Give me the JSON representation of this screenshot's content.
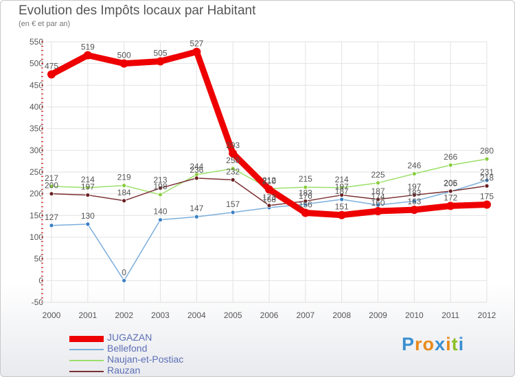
{
  "header": {
    "title": "Evolution des Impôts locaux par Habitant",
    "subtitle": "(en € et par an)"
  },
  "brand": {
    "letters": [
      "P",
      "r",
      "o",
      "x",
      "i",
      "t",
      "i"
    ],
    "colors": [
      "#3a8fd0",
      "#e8891c",
      "#e8891c",
      "#3a8fd0",
      "#e8891c",
      "#8cbf26",
      "#3a8fd0"
    ]
  },
  "chart_data": {
    "type": "line",
    "title": "Evolution des Impôts locaux par Habitant",
    "subtitle": "(en € et par an)",
    "xlabel": "",
    "ylabel": "",
    "categories": [
      "2000",
      "2001",
      "2002",
      "2003",
      "2004",
      "2005",
      "2006",
      "2007",
      "2008",
      "2009",
      "2010",
      "2011",
      "2012"
    ],
    "ylim": [
      -50,
      550
    ],
    "yticks": [
      -50,
      0,
      50,
      100,
      150,
      200,
      250,
      300,
      350,
      400,
      450,
      500,
      550
    ],
    "grid": true,
    "legend_position": "bottom-left",
    "series": [
      {
        "name": "JUGAZAN",
        "color": "#ee0000",
        "marker_color": "#ee0000",
        "values": [
          475,
          519,
          500,
          505,
          527,
          293,
          210,
          156,
          151,
          160,
          163,
          172,
          175
        ],
        "labels": [
          "475",
          "519",
          "500",
          "505",
          "527",
          "293",
          "210",
          "156",
          "151",
          "160",
          "163",
          "172",
          "175"
        ]
      },
      {
        "name": "Bellefond",
        "color": "#7aaedc",
        "marker_color": "#3a7fc4",
        "values": [
          127,
          130,
          0,
          140,
          147,
          157,
          168,
          176,
          187,
          174,
          183,
          205,
          231
        ],
        "labels": [
          "127",
          "130",
          "0",
          "140",
          "147",
          "157",
          "168",
          "176",
          "187",
          "174",
          "183",
          "205",
          "231"
        ]
      },
      {
        "name": "Naujan-et-Postiac",
        "color": "#9be06a",
        "marker_color": "#8acc3f",
        "values": [
          217,
          214,
          219,
          198,
          244,
          258,
          212,
          215,
          214,
          225,
          246,
          266,
          280
        ],
        "labels": [
          "217",
          "214",
          "219",
          "198",
          "244",
          "258",
          "212",
          "215",
          "214",
          "225",
          "246",
          "266",
          "280"
        ]
      },
      {
        "name": "Rauzan",
        "color": "#7a2f32",
        "marker_color": "#6a1f22",
        "values": [
          200,
          197,
          184,
          213,
          236,
          232,
          173,
          183,
          197,
          187,
          197,
          206,
          218
        ],
        "labels": [
          "200",
          "197",
          "184",
          "213",
          "236",
          "232",
          "173",
          "183",
          "197",
          "187",
          "197",
          "206",
          "218"
        ]
      }
    ]
  }
}
